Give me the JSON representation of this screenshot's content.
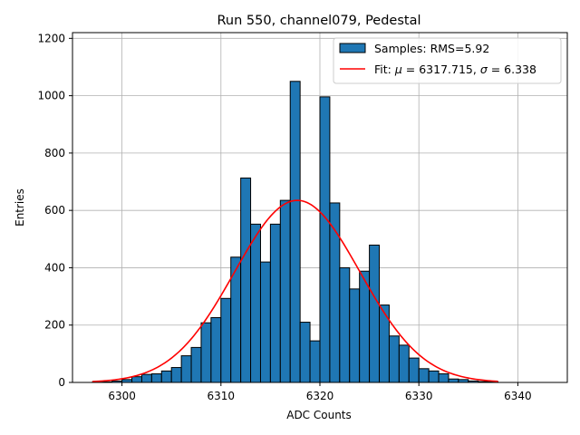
{
  "chart_data": {
    "type": "histogram",
    "title": "Run 550, channel079, Pedestal",
    "xlabel": "ADC Counts",
    "ylabel": "Entries",
    "xlim": [
      6295,
      6345
    ],
    "ylim": [
      0,
      1220
    ],
    "xticks": [
      6300,
      6310,
      6320,
      6330,
      6340
    ],
    "yticks": [
      0,
      200,
      400,
      600,
      800,
      1000,
      1200
    ],
    "grid": true,
    "legend_position": "top-right",
    "bar_color": "#1f77b4",
    "fit_color": "#ff0000",
    "bins": {
      "start": 6297,
      "width": 1,
      "counts": [
        1,
        2,
        5,
        10,
        20,
        28,
        30,
        40,
        52,
        93,
        122,
        208,
        226,
        293,
        437,
        713,
        552,
        420,
        552,
        635,
        1050,
        210,
        145,
        996,
        626,
        400,
        326,
        388,
        479,
        270,
        162,
        130,
        85,
        48,
        40,
        30,
        12,
        10,
        5,
        3,
        2
      ]
    },
    "series": [
      {
        "name": "Samples: RMS=5.92",
        "kind": "histogram"
      },
      {
        "name": "Fit: μ = 6317.715, σ = 6.338",
        "kind": "gaussian",
        "mu": 6317.715,
        "sigma": 6.338,
        "amplitude": 635,
        "x_range": [
          6297,
          6338
        ]
      }
    ],
    "legend": [
      {
        "label_parts": [
          "Samples: RMS=5.92"
        ]
      },
      {
        "label_parts": [
          "Fit: ",
          "μ",
          " = 6317.715, ",
          "σ",
          " = 6.338"
        ]
      }
    ]
  }
}
